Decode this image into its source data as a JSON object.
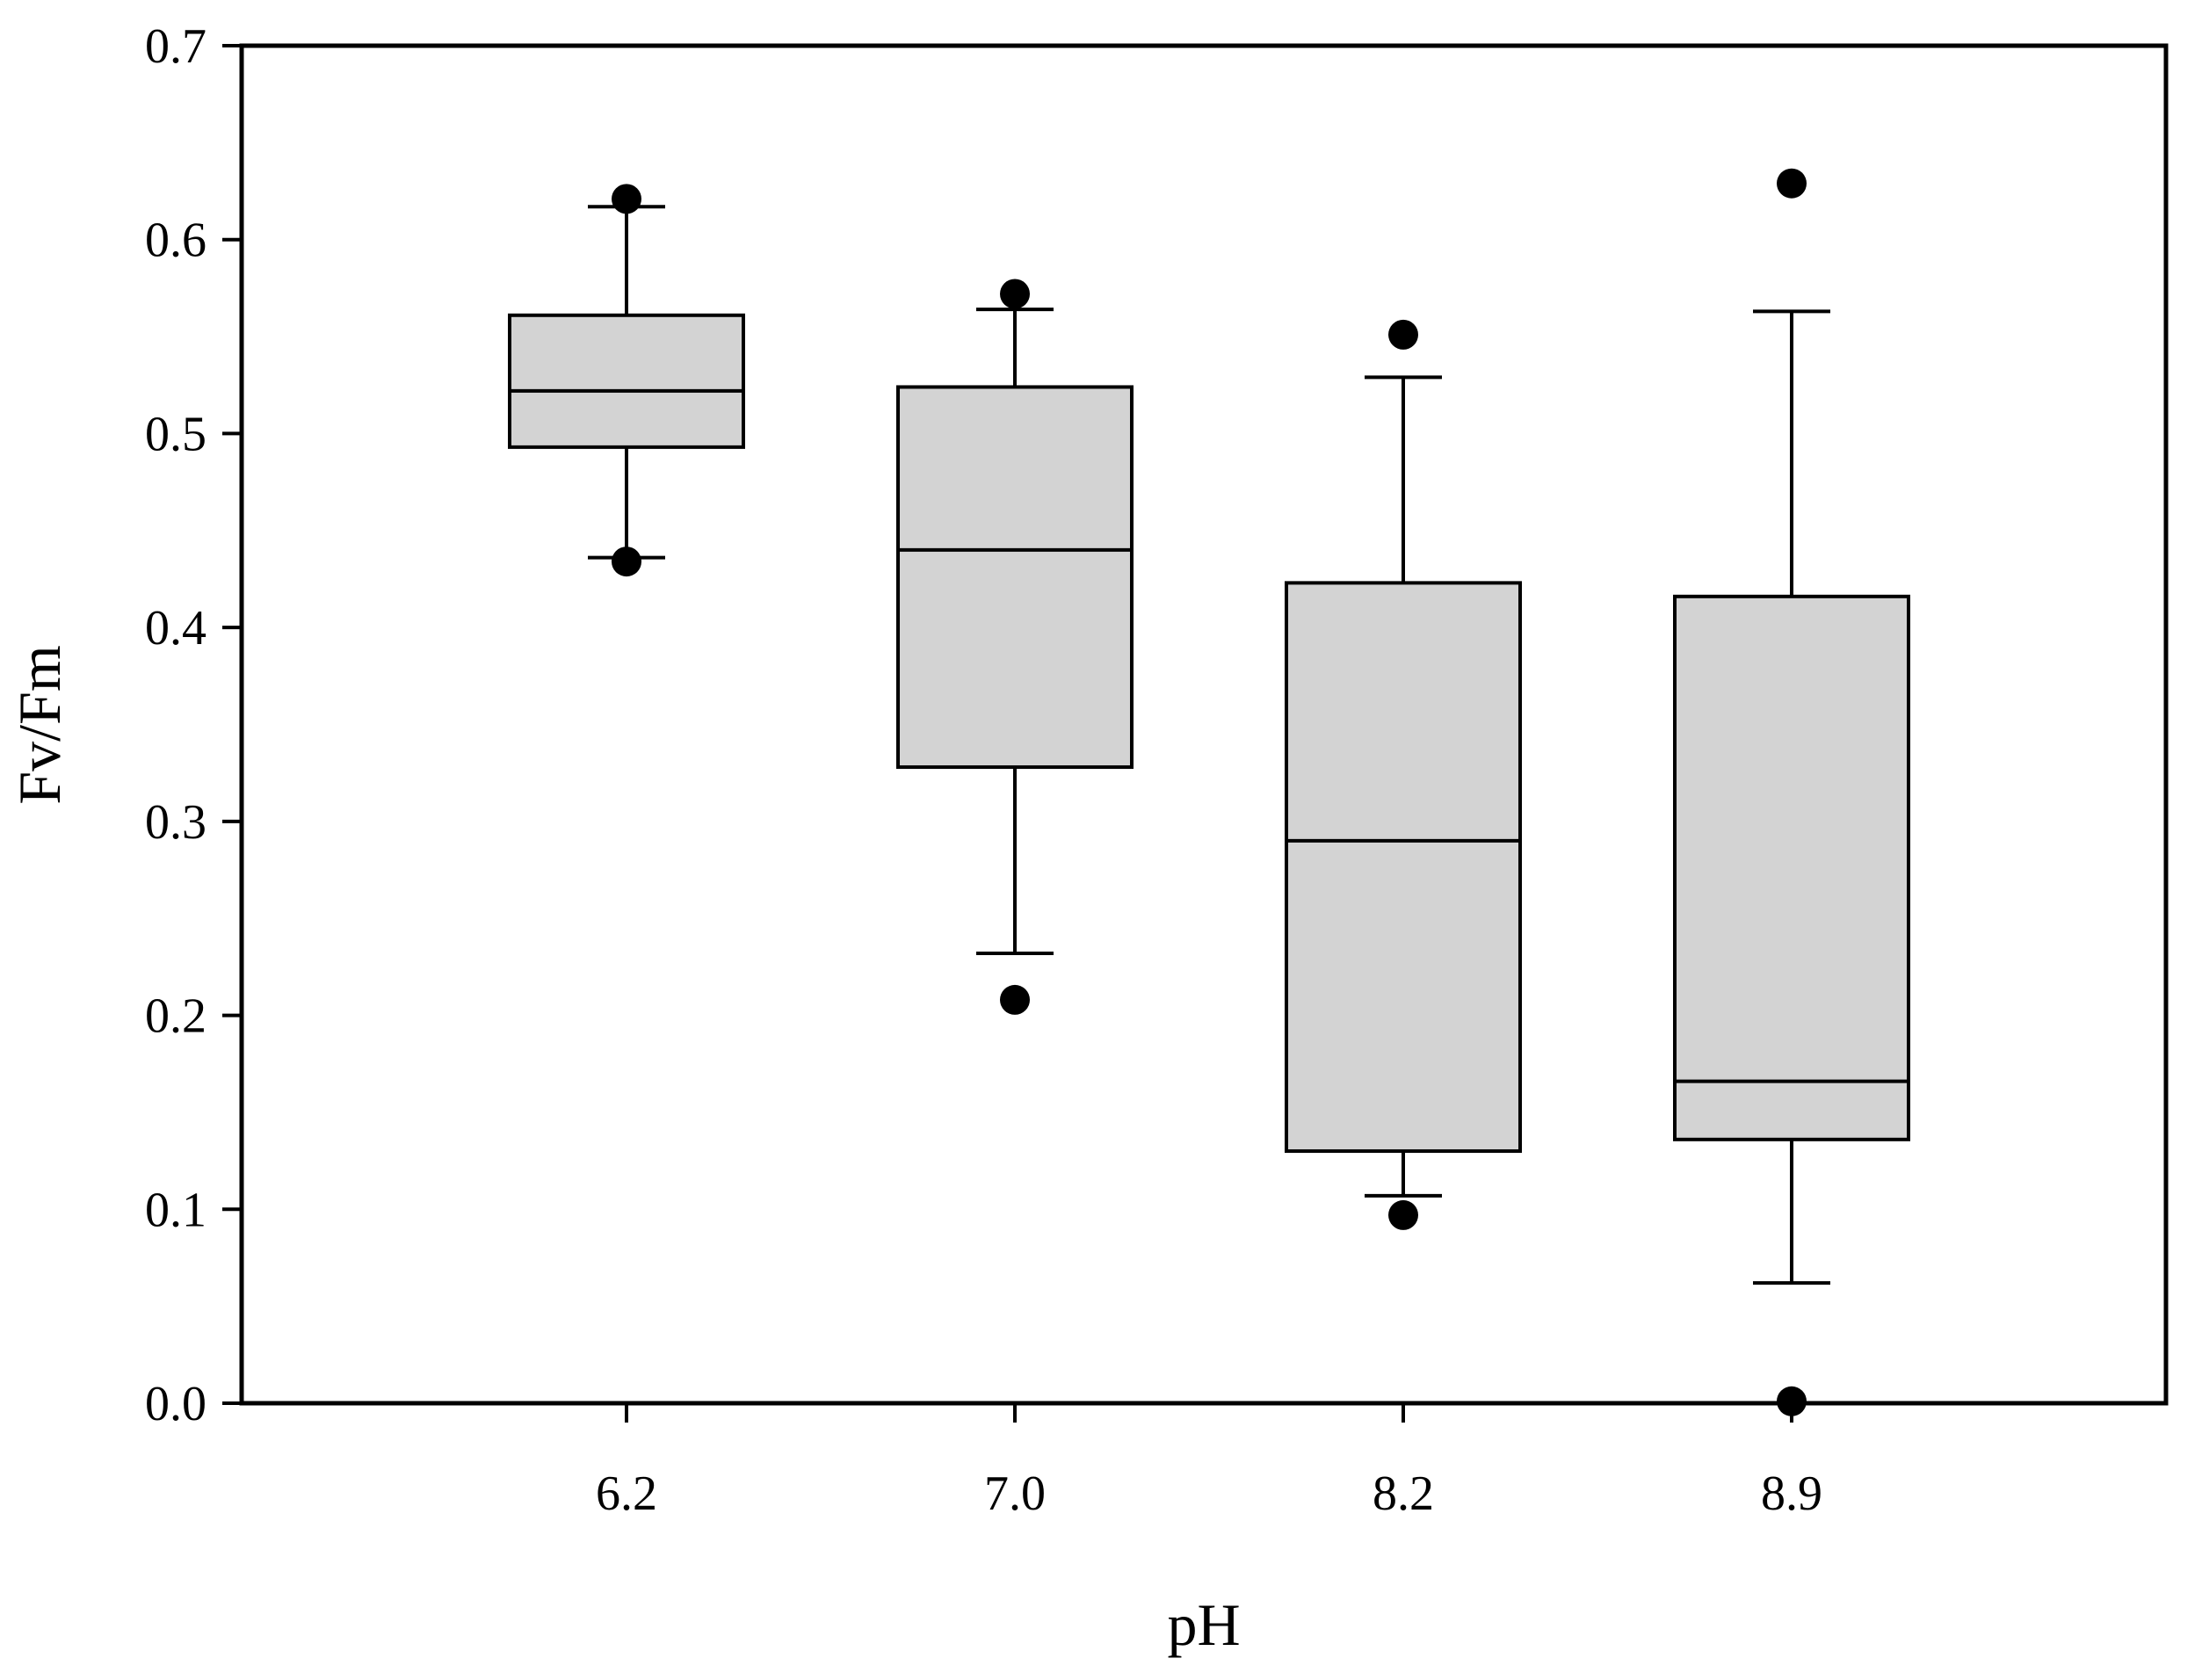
{
  "chart_data": {
    "type": "box",
    "title": "",
    "xlabel": "pH",
    "ylabel": "Fv/Fm",
    "ylim": [
      0,
      0.7
    ],
    "yticks": [
      "0.0",
      "0.1",
      "0.2",
      "0.3",
      "0.4",
      "0.5",
      "0.6",
      "0.7"
    ],
    "categories": [
      "6.2",
      "7.0",
      "8.2",
      "8.9"
    ],
    "boxes": [
      {
        "category": "6.2",
        "whisker_low": 0.436,
        "q1": 0.493,
        "median": 0.522,
        "q3": 0.561,
        "whisker_high": 0.617,
        "outliers": [
          0.434,
          0.621
        ]
      },
      {
        "category": "7.0",
        "whisker_low": 0.232,
        "q1": 0.328,
        "median": 0.44,
        "q3": 0.524,
        "whisker_high": 0.564,
        "outliers": [
          0.208,
          0.572
        ]
      },
      {
        "category": "8.2",
        "whisker_low": 0.107,
        "q1": 0.13,
        "median": 0.29,
        "q3": 0.423,
        "whisker_high": 0.529,
        "outliers": [
          0.097,
          0.551
        ]
      },
      {
        "category": "8.9",
        "whisker_low": 0.062,
        "q1": 0.136,
        "median": 0.166,
        "q3": 0.416,
        "whisker_high": 0.563,
        "outliers": [
          0.001,
          0.629
        ]
      }
    ],
    "grid": false,
    "legend": "none",
    "colors": {
      "box_fill": "#d3d3d3",
      "stroke": "#000000",
      "outlier": "#000000"
    }
  }
}
